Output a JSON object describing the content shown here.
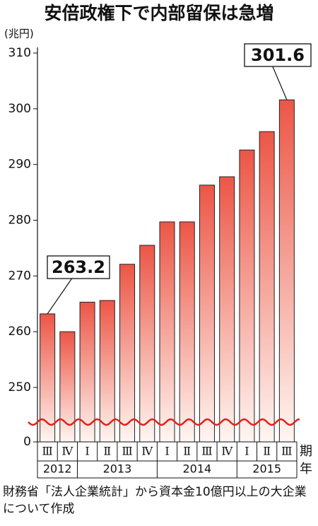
{
  "chart_data": {
    "type": "bar",
    "title": "安倍政権下で内部留保は急増",
    "y_label": "(兆円)",
    "x_label": "期",
    "x_group_label": "年",
    "groups": [
      {
        "name": "2012",
        "categories": [
          "Ⅲ",
          "Ⅳ"
        ]
      },
      {
        "name": "2013",
        "categories": [
          "Ⅰ",
          "Ⅱ",
          "Ⅲ",
          "Ⅳ"
        ]
      },
      {
        "name": "2014",
        "categories": [
          "Ⅰ",
          "Ⅱ",
          "Ⅲ",
          "Ⅳ"
        ]
      },
      {
        "name": "2015",
        "categories": [
          "Ⅰ",
          "Ⅱ",
          "Ⅲ"
        ]
      }
    ],
    "values": [
      263.2,
      260.0,
      265.3,
      265.6,
      272.1,
      275.5,
      279.7,
      279.7,
      286.3,
      287.8,
      292.6,
      295.9,
      301.6
    ],
    "ylim": [
      0,
      310
    ],
    "ybreak": [
      0,
      250
    ],
    "yticks": [
      0,
      250,
      260,
      270,
      280,
      290,
      300,
      310
    ],
    "color": "#ec5646",
    "note": "財務省「法人企業統計」から資本金10億円以上の大企業について作成"
  }
}
